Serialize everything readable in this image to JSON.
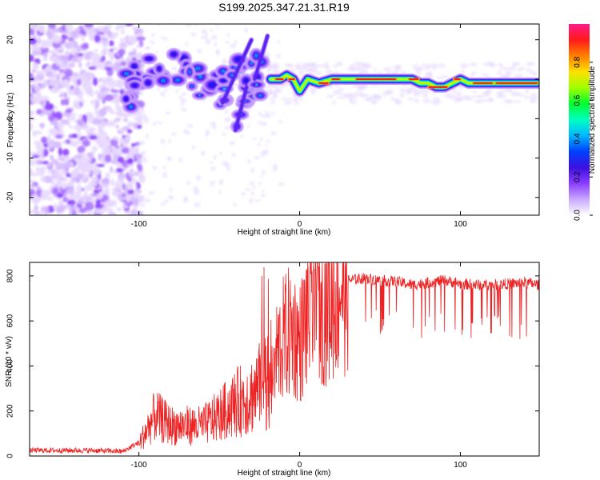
{
  "title": "S199.2025.347.21.31.R19",
  "chart_data": [
    {
      "type": "heatmap",
      "title": "S199.2025.347.21.31.R19",
      "xlabel": "Height of straight line (km)",
      "ylabel": "Frequency (Hz)",
      "xlim": [
        -168,
        149
      ],
      "ylim": [
        -24.5,
        24
      ],
      "xticks": [
        -100,
        0,
        100
      ],
      "yticks": [
        -20,
        -10,
        0,
        10,
        20
      ],
      "colorbar": {
        "label": "Normalized spectral amplitude",
        "range": [
          0,
          1
        ],
        "ticks": [
          0.0,
          0.2,
          0.4,
          0.6,
          0.8
        ],
        "colormap": [
          "#ffffff",
          "#c8a8ff",
          "#8a3cff",
          "#3a10e0",
          "#0040ff",
          "#00b8ff",
          "#00ffc0",
          "#00ff30",
          "#a0ff00",
          "#ffe000",
          "#ff8000",
          "#ff1a1a",
          "#ff1a8c"
        ]
      },
      "ridge": {
        "description_points_x": [
          -105,
          -95,
          -85,
          -75,
          -65,
          -55,
          -45,
          -35,
          -25,
          -18,
          -12,
          -8,
          -4,
          0,
          5,
          12,
          20,
          30,
          40,
          50,
          60,
          70,
          75,
          80,
          85,
          90,
          95,
          100,
          105,
          110,
          120,
          130,
          140,
          148
        ],
        "frequency_y": [
          10,
          11,
          12,
          10,
          9,
          9,
          10,
          12,
          11,
          10,
          10,
          11,
          10,
          7,
          10,
          9,
          10,
          10,
          10,
          10,
          10,
          10,
          9,
          9,
          8,
          8,
          9,
          10,
          9,
          9,
          9,
          9,
          9,
          9
        ]
      }
    },
    {
      "type": "line",
      "xlabel": "Height of straight line (km)",
      "ylabel": "SNR (10 * v/v)",
      "xlim": [
        -168,
        149
      ],
      "ylim": [
        0,
        860
      ],
      "xticks": [
        -100,
        0,
        100
      ],
      "yticks": [
        0,
        200,
        400,
        600,
        800
      ],
      "color": "#ee2222",
      "x": [
        -168,
        -150,
        -130,
        -110,
        -100,
        -90,
        -80,
        -70,
        -60,
        -50,
        -40,
        -30,
        -20,
        -15,
        -10,
        -5,
        0,
        5,
        10,
        15,
        20,
        25,
        30,
        40,
        50,
        60,
        70,
        80,
        90,
        100,
        110,
        120,
        130,
        140,
        149
      ],
      "y": [
        25,
        25,
        25,
        20,
        60,
        200,
        150,
        150,
        150,
        200,
        260,
        300,
        380,
        450,
        520,
        560,
        500,
        620,
        700,
        680,
        700,
        760,
        780,
        790,
        780,
        775,
        760,
        770,
        780,
        765,
        760,
        760,
        765,
        770,
        760
      ]
    }
  ]
}
